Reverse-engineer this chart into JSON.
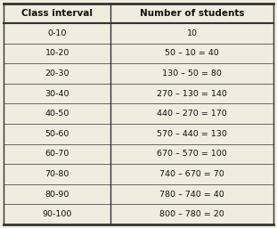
{
  "col1_header": "Class interval",
  "col2_header": "Number of students",
  "rows": [
    [
      "0-10",
      "10"
    ],
    [
      "10-20",
      "50 – 10 = 40"
    ],
    [
      "20-30",
      "130 – 50 = 80"
    ],
    [
      "30-40",
      "270 – 130 = 140"
    ],
    [
      "40-50",
      "440 – 270 = 170"
    ],
    [
      "50-60",
      "570 – 440 = 130"
    ],
    [
      "60-70",
      "670 – 570 = 100"
    ],
    [
      "70-80",
      "740 – 670 = 70"
    ],
    [
      "80-90",
      "780 – 740 = 40"
    ],
    [
      "90-100",
      "800 – 780 = 20"
    ]
  ],
  "bg_color": "#f0ece0",
  "border_color": "#333333",
  "text_color": "#111111",
  "header_fontsize": 7.5,
  "cell_fontsize": 6.8,
  "col_split": 0.4
}
